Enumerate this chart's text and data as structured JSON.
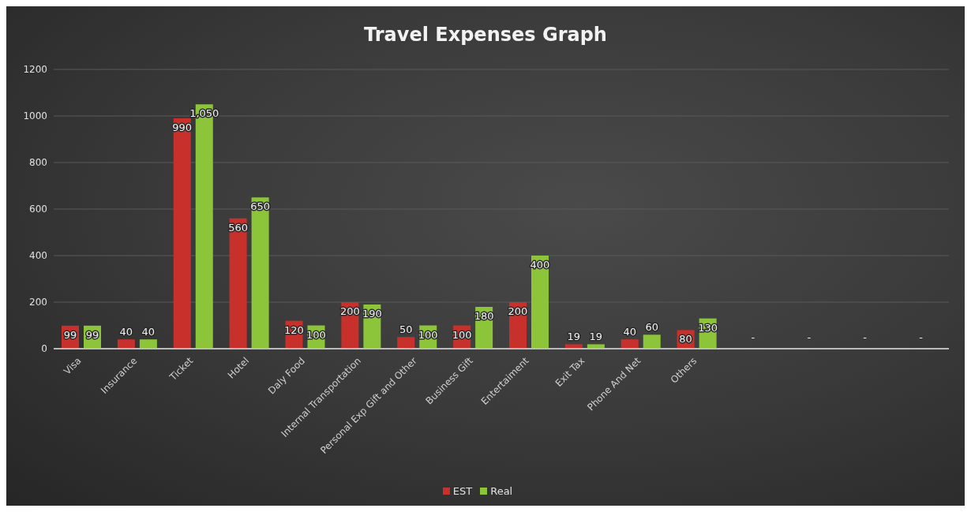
{
  "chart_data": {
    "type": "bar",
    "title": "Travel Expenses Graph",
    "categories": [
      "Visa",
      "Insurance",
      "Ticket",
      "Hotel",
      "Daly Food",
      "Internal Transportation",
      "Personal Exp Gift and Other",
      "Business Gift",
      "Entertaiment",
      "Exit Tax",
      "Phone And Net",
      "Others",
      null,
      null,
      null,
      null
    ],
    "series": [
      {
        "name": "EST",
        "color": "#c8302c",
        "values": [
          99,
          40,
          990,
          560,
          120,
          200,
          50,
          100,
          200,
          19,
          40,
          80,
          null,
          null,
          null,
          null
        ],
        "value_labels": [
          "99",
          "40",
          "990",
          "560",
          "120",
          "200",
          "50",
          "100",
          "200",
          "19",
          "40",
          "80",
          "-",
          "-",
          "-",
          "-"
        ]
      },
      {
        "name": "Real",
        "color": "#8cc43a",
        "values": [
          99,
          40,
          1050,
          650,
          100,
          190,
          100,
          180,
          400,
          19,
          60,
          130,
          null,
          null,
          null,
          null
        ],
        "value_labels": [
          "99",
          "40",
          "1,050",
          "650",
          "100",
          "190",
          "100",
          "180",
          "400",
          "19",
          "60",
          "130",
          null,
          null,
          null,
          null
        ]
      }
    ],
    "ylim": [
      0,
      1200
    ],
    "yticks": [
      0,
      200,
      400,
      600,
      800,
      1000,
      1200
    ],
    "grid": "y",
    "legend": "bottom"
  }
}
